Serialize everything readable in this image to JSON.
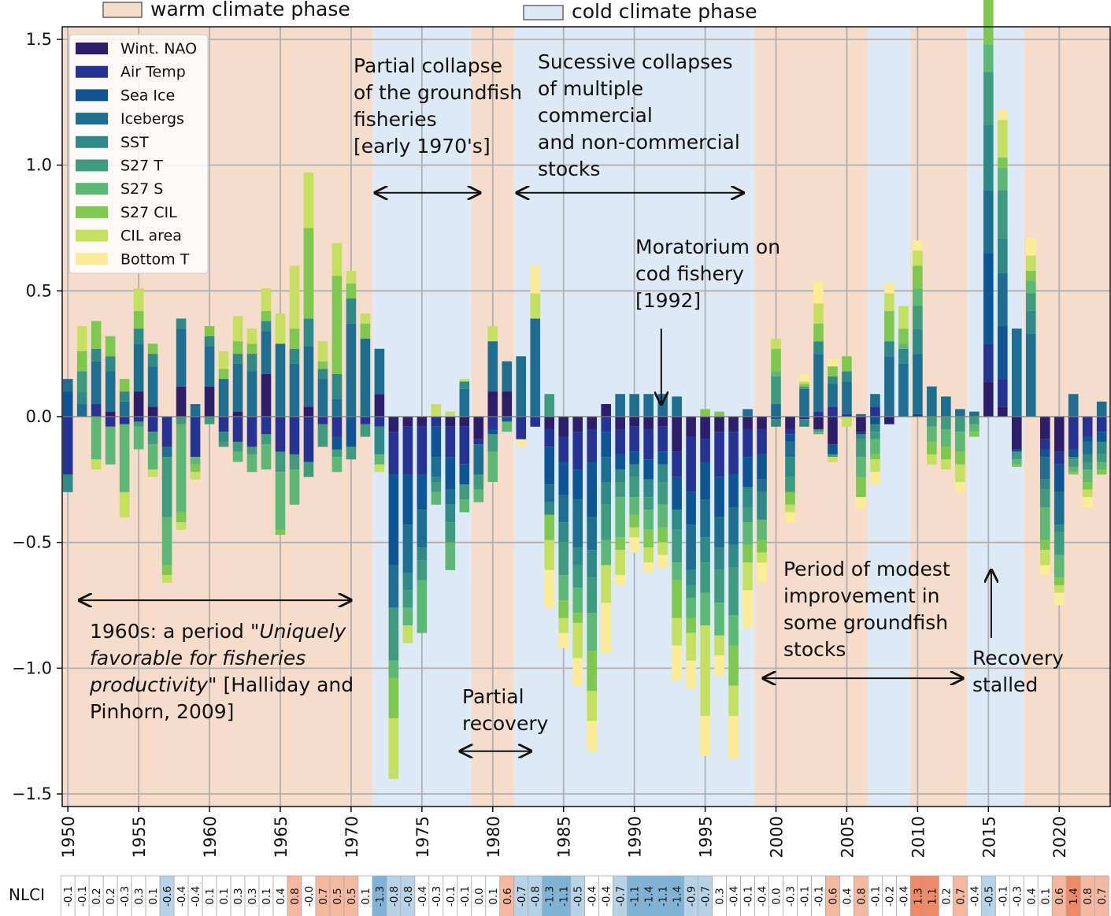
{
  "chart_data": {
    "type": "bar",
    "stacked": true,
    "x": [
      1950,
      1951,
      1952,
      1953,
      1954,
      1955,
      1956,
      1957,
      1958,
      1959,
      1960,
      1961,
      1962,
      1963,
      1964,
      1965,
      1966,
      1967,
      1968,
      1969,
      1970,
      1971,
      1972,
      1973,
      1974,
      1975,
      1976,
      1977,
      1978,
      1979,
      1980,
      1981,
      1982,
      1983,
      1984,
      1985,
      1986,
      1987,
      1988,
      1989,
      1990,
      1991,
      1992,
      1993,
      1994,
      1995,
      1996,
      1997,
      1998,
      1999,
      2000,
      2001,
      2002,
      2003,
      2004,
      2005,
      2006,
      2007,
      2008,
      2009,
      2010,
      2011,
      2012,
      2013,
      2014,
      2015,
      2016,
      2017,
      2018,
      2019,
      2020,
      2021,
      2022,
      2023
    ],
    "x_ticks": [
      "1950",
      "1955",
      "1960",
      "1965",
      "1970",
      "1975",
      "1980",
      "1985",
      "1990",
      "1995",
      "2000",
      "2005",
      "2010",
      "2015",
      "2020"
    ],
    "y_ticks": [
      "1.5",
      "1.0",
      "0.5",
      "0.0",
      "-0.5",
      "-1.0",
      "-1.5"
    ],
    "ylim": [
      -1.55,
      1.55
    ],
    "xlim": [
      1949.6,
      2023.6
    ],
    "grid": true,
    "legend_position": "top-left",
    "series_names": [
      "Wint. NAO",
      "Air Temp",
      "Sea Ice",
      "Icebergs",
      "SST",
      "S27 T",
      "S27 S",
      "S27 CIL",
      "CIL area",
      "Bottom T"
    ],
    "colors": [
      "#2d1e6b",
      "#253494",
      "#0e5596",
      "#1d6e91",
      "#2f8a87",
      "#3e9b7f",
      "#5cb874",
      "#7ec850",
      "#c4e05e",
      "#fbec95"
    ],
    "components": [
      [
        0.0,
        -0.23,
        0.1,
        0.05,
        -0.07,
        0.0,
        0.0,
        0.0,
        0.0,
        0.0
      ],
      [
        0.0,
        0.0,
        0.0,
        0.05,
        0.05,
        0.08,
        0.0,
        0.08,
        0.1,
        0.0
      ],
      [
        0.0,
        0.05,
        0.0,
        0.17,
        0.05,
        0.0,
        -0.17,
        0.11,
        -0.04,
        0.0
      ],
      [
        0.02,
        -0.04,
        0.0,
        0.16,
        0.06,
        0.0,
        -0.15,
        0.08,
        0.0,
        0.0
      ],
      [
        0.0,
        -0.03,
        0.0,
        0.06,
        0.04,
        0.0,
        -0.27,
        0.05,
        -0.1,
        0.0
      ],
      [
        0.1,
        -0.02,
        0.0,
        0.19,
        0.06,
        -0.02,
        -0.09,
        0.07,
        0.09,
        0.0
      ],
      [
        0.04,
        -0.06,
        0.0,
        0.16,
        0.05,
        -0.05,
        -0.1,
        0.04,
        -0.03,
        0.0
      ],
      [
        0.0,
        -0.12,
        0.0,
        -0.04,
        0.0,
        -0.24,
        -0.19,
        -0.04,
        -0.03,
        0.0
      ],
      [
        0.12,
        0.0,
        0.0,
        0.23,
        0.04,
        -0.03,
        -0.35,
        -0.04,
        -0.03,
        0.0
      ],
      [
        0.0,
        -0.16,
        0.0,
        0.05,
        0.0,
        0.0,
        -0.03,
        -0.03,
        -0.03,
        0.0
      ],
      [
        0.12,
        0.0,
        0.0,
        0.16,
        0.04,
        -0.03,
        0.0,
        0.04,
        0.0,
        0.0
      ],
      [
        0.0,
        -0.06,
        0.0,
        0.15,
        -0.04,
        -0.02,
        0.0,
        0.04,
        0.07,
        0.0
      ],
      [
        0.02,
        -0.1,
        0.0,
        0.19,
        0.04,
        -0.04,
        -0.04,
        0.05,
        0.1,
        0.0
      ],
      [
        0.0,
        -0.12,
        0.0,
        0.18,
        0.07,
        -0.03,
        -0.07,
        0.04,
        0.06,
        0.0
      ],
      [
        0.17,
        -0.07,
        0.0,
        0.17,
        0.04,
        -0.04,
        -0.1,
        0.04,
        0.09,
        0.0
      ],
      [
        0.0,
        -0.14,
        0.0,
        0.29,
        0.0,
        -0.08,
        -0.23,
        -0.02,
        0.12,
        0.0
      ],
      [
        0.0,
        -0.15,
        0.0,
        0.21,
        0.06,
        -0.06,
        -0.14,
        0.08,
        0.25,
        0.0
      ],
      [
        0.04,
        -0.18,
        0.0,
        0.24,
        0.11,
        -0.06,
        0.0,
        0.36,
        0.22,
        0.0
      ],
      [
        0.0,
        -0.03,
        0.0,
        0.15,
        0.04,
        -0.09,
        0.0,
        0.03,
        0.08,
        0.0
      ],
      [
        0.0,
        -0.08,
        -0.05,
        0.07,
        0.1,
        -0.03,
        -0.06,
        0.39,
        0.13,
        0.0
      ],
      [
        0.0,
        0.0,
        -0.12,
        0.37,
        0.1,
        -0.05,
        0.0,
        0.06,
        0.05,
        0.0
      ],
      [
        0.0,
        -0.03,
        0.0,
        0.31,
        0.0,
        -0.05,
        0.0,
        0.06,
        0.04,
        0.0
      ],
      [
        0.09,
        -0.04,
        0.0,
        0.18,
        -0.11,
        0.0,
        -0.04,
        0.0,
        -0.03,
        0.0
      ],
      [
        -0.06,
        -0.17,
        -0.36,
        -0.17,
        -0.0,
        -0.21,
        -0.07,
        -0.16,
        -0.24,
        0.0
      ],
      [
        -0.04,
        -0.19,
        -0.2,
        -0.19,
        -0.07,
        -0.07,
        -0.07,
        0.0,
        -0.07,
        0.0
      ],
      [
        -0.04,
        -0.19,
        -0.14,
        -0.15,
        -0.05,
        -0.08,
        -0.21,
        -0.0,
        0.0,
        0.0
      ],
      [
        0.0,
        -0.04,
        -0.12,
        -0.08,
        -0.02,
        -0.04,
        -0.05,
        0.0,
        0.05,
        0.0
      ],
      [
        -0.04,
        -0.12,
        -0.13,
        -0.06,
        -0.07,
        -0.08,
        -0.11,
        0.0,
        0.02,
        0.0
      ],
      [
        -0.04,
        -0.15,
        -0.08,
        0.11,
        0.03,
        -0.06,
        -0.05,
        0.0,
        0.01,
        0.0
      ],
      [
        -0.09,
        -0.02,
        0.0,
        -0.12,
        0.0,
        -0.06,
        -0.05,
        0.0,
        0.0,
        0.0
      ],
      [
        0.1,
        -0.05,
        -0.02,
        0.2,
        0.0,
        -0.07,
        -0.12,
        0.0,
        0.06,
        0.0
      ],
      [
        0.1,
        0.0,
        -0.02,
        0.12,
        0.0,
        0.0,
        -0.04,
        0.0,
        0.0,
        0.0
      ],
      [
        0.0,
        -0.09,
        0.0,
        0.24,
        0.0,
        0.0,
        0.0,
        0.0,
        0.0,
        -0.03
      ],
      [
        0.0,
        -0.04,
        0.0,
        0.39,
        0.0,
        0.0,
        0.0,
        0.0,
        0.1,
        0.11
      ],
      [
        -0.05,
        -0.07,
        -0.15,
        -0.07,
        -0.05,
        0.09,
        0.0,
        -0.1,
        -0.12,
        -0.15
      ],
      [
        -0.08,
        -0.1,
        -0.13,
        -0.11,
        -0.08,
        -0.13,
        -0.1,
        -0.07,
        -0.06,
        -0.06
      ],
      [
        -0.06,
        -0.15,
        -0.12,
        -0.19,
        -0.07,
        -0.09,
        -0.1,
        -0.04,
        -0.14,
        -0.11
      ],
      [
        -0.05,
        -0.13,
        -0.22,
        -0.13,
        -0.11,
        -0.14,
        -0.15,
        -0.16,
        -0.12,
        -0.12
      ],
      [
        0.05,
        -0.06,
        -0.1,
        -0.1,
        -0.09,
        -0.14,
        -0.1,
        0.0,
        -0.15,
        -0.2
      ],
      [
        -0.05,
        -0.1,
        -0.06,
        0.09,
        -0.05,
        -0.06,
        -0.16,
        -0.05,
        -0.1,
        -0.04
      ],
      [
        -0.04,
        -0.1,
        -0.05,
        0.09,
        -0.05,
        -0.08,
        -0.07,
        -0.05,
        -0.04,
        -0.06
      ],
      [
        -0.05,
        -0.12,
        -0.08,
        0.09,
        -0.07,
        -0.05,
        -0.08,
        -0.07,
        -0.06,
        -0.04
      ],
      [
        -0.04,
        -0.1,
        -0.05,
        0.09,
        -0.07,
        -0.09,
        -0.09,
        -0.06,
        -0.05,
        -0.05
      ],
      [
        -0.14,
        -0.1,
        -0.13,
        0.08,
        -0.08,
        -0.13,
        -0.07,
        -0.15,
        -0.11,
        -0.14
      ],
      [
        -0.08,
        -0.22,
        -0.13,
        -0.18,
        -0.06,
        -0.05,
        -0.08,
        -0.06,
        -0.11,
        -0.11
      ],
      [
        -0.09,
        -0.09,
        -0.15,
        -0.15,
        -0.1,
        -0.12,
        -0.13,
        0.03,
        -0.36,
        -0.16
      ],
      [
        -0.06,
        -0.18,
        -0.16,
        -0.12,
        -0.09,
        -0.13,
        -0.13,
        0.02,
        -0.08,
        -0.08
      ],
      [
        -0.06,
        -0.17,
        -0.13,
        -0.15,
        -0.09,
        -0.19,
        -0.12,
        -0.16,
        -0.12,
        -0.17
      ],
      [
        -0.05,
        -0.11,
        -0.12,
        0.03,
        -0.08,
        -0.06,
        -0.09,
        -0.07,
        -0.11,
        -0.15
      ],
      [
        -0.05,
        -0.1,
        -0.1,
        -0.05,
        -0.11,
        0.0,
        -0.08,
        -0.05,
        -0.04,
        -0.08
      ],
      [
        0.0,
        0.0,
        -0.01,
        0.05,
        -0.03,
        0.11,
        0.02,
        0.09,
        0.04,
        0.0
      ],
      [
        -0.05,
        -0.02,
        -0.03,
        -0.06,
        -0.08,
        -0.06,
        0.0,
        -0.05,
        -0.03,
        -0.04
      ],
      [
        0.0,
        -0.01,
        0.0,
        0.11,
        -0.03,
        0.01,
        0.0,
        0.01,
        0.01,
        0.03
      ],
      [
        -0.05,
        0.02,
        0.0,
        0.23,
        0.05,
        -0.01,
        -0.01,
        0.07,
        0.08,
        0.09
      ],
      [
        -0.11,
        0.04,
        -0.04,
        0.09,
        0.03,
        -0.01,
        0.0,
        0.04,
        -0.02,
        0.03
      ],
      [
        0.0,
        0.01,
        0.0,
        0.13,
        0.04,
        0.0,
        0.0,
        0.06,
        -0.04,
        0.0
      ],
      [
        -0.06,
        -0.01,
        0.0,
        0.01,
        -0.02,
        -0.07,
        -0.08,
        -0.08,
        0.0,
        -0.05
      ],
      [
        0.0,
        0.04,
        -0.03,
        0.05,
        -0.03,
        -0.03,
        -0.06,
        -0.02,
        -0.05,
        -0.05
      ],
      [
        -0.03,
        0.0,
        0.0,
        0.24,
        0.06,
        0.0,
        0.0,
        0.12,
        0.07,
        0.04
      ],
      [
        0.0,
        0.0,
        0.0,
        0.21,
        0.06,
        0.0,
        0.02,
        0.06,
        0.09,
        0.0
      ],
      [
        0.0,
        0.01,
        0.0,
        0.24,
        0.1,
        0.09,
        0.07,
        0.09,
        0.06,
        0.04
      ],
      [
        0.0,
        0.0,
        0.0,
        0.12,
        0.0,
        -0.04,
        -0.06,
        -0.05,
        -0.04,
        0.0
      ],
      [
        0.0,
        0.0,
        0.0,
        0.08,
        0.0,
        -0.05,
        -0.07,
        -0.05,
        -0.04,
        0.0
      ],
      [
        0.0,
        0.0,
        0.0,
        0.03,
        0.0,
        -0.06,
        -0.08,
        -0.05,
        -0.07,
        -0.04
      ],
      [
        0.0,
        0.0,
        0.0,
        0.02,
        0.0,
        -0.03,
        -0.03,
        -0.02,
        0.0,
        0.0
      ],
      [
        0.14,
        0.15,
        0.36,
        0.25,
        0.26,
        0.21,
        0.11,
        0.18,
        0.09,
        0.12
      ],
      [
        0.04,
        0.11,
        0.21,
        0.21,
        0.14,
        0.19,
        0.09,
        0.04,
        0.15,
        0.04
      ],
      [
        -0.13,
        0.0,
        -0.01,
        0.35,
        0.0,
        -0.03,
        -0.02,
        -0.01,
        0.0,
        0.0
      ],
      [
        0.0,
        0.0,
        0.0,
        0.33,
        0.09,
        0.07,
        0.05,
        0.04,
        0.06,
        0.07
      ],
      [
        -0.09,
        -0.04,
        -0.03,
        -0.09,
        -0.04,
        -0.07,
        -0.13,
        -0.04,
        -0.06,
        -0.04
      ],
      [
        -0.14,
        -0.05,
        -0.11,
        -0.13,
        -0.03,
        -0.09,
        -0.09,
        -0.03,
        -0.03,
        -0.05
      ],
      [
        0.0,
        -0.13,
        -0.03,
        0.09,
        -0.01,
        -0.03,
        -0.02,
        -0.01,
        0.0,
        0.0
      ],
      [
        0.0,
        -0.08,
        -0.02,
        -0.05,
        -0.03,
        -0.03,
        -0.05,
        -0.03,
        -0.03,
        -0.04
      ],
      [
        0.0,
        -0.06,
        -0.04,
        0.06,
        -0.05,
        -0.03,
        -0.03,
        -0.02,
        0.0,
        0.0
      ]
    ],
    "phases": [
      {
        "type": "warm",
        "start": 1949.6,
        "end": 1971.5
      },
      {
        "type": "cold",
        "start": 1971.5,
        "end": 1978.5
      },
      {
        "type": "warm",
        "start": 1978.5,
        "end": 1981.5
      },
      {
        "type": "cold",
        "start": 1981.5,
        "end": 1998.5
      },
      {
        "type": "warm",
        "start": 1998.5,
        "end": 2006.5
      },
      {
        "type": "cold",
        "start": 2006.5,
        "end": 2009.5
      },
      {
        "type": "warm",
        "start": 2009.5,
        "end": 2013.5
      },
      {
        "type": "cold",
        "start": 2013.5,
        "end": 2017.5
      },
      {
        "type": "warm",
        "start": 2017.5,
        "end": 2023.6
      }
    ],
    "phase_colors": {
      "warm": "#f5dccb",
      "cold": "#dde9f4"
    },
    "phase_legend": {
      "warm": "warm climate phase",
      "cold": "cold climate phase"
    },
    "nlci_label": "NLCI",
    "nlci": [
      -0.1,
      -0.1,
      0.2,
      0.2,
      -0.3,
      0.3,
      0.1,
      -0.6,
      -0.4,
      -0.4,
      0.1,
      0.1,
      0.3,
      0.3,
      0.1,
      0.4,
      0.8,
      -0.0,
      0.7,
      0.5,
      0.5,
      0.1,
      -1.3,
      -0.8,
      -0.8,
      -0.4,
      -0.3,
      -0.1,
      -0.1,
      0.0,
      0.1,
      0.6,
      -0.7,
      -0.8,
      -1.3,
      -1.1,
      -0.5,
      -0.4,
      -0.4,
      -0.7,
      -1.1,
      -1.4,
      -1.1,
      -1.4,
      -0.9,
      -0.7,
      0.3,
      -0.4,
      -0.1,
      -0.4,
      0.0,
      -0.3,
      -0.1,
      -0.1,
      0.6,
      0.4,
      0.8,
      -0.1,
      -0.2,
      -0.4,
      1.3,
      1.1,
      0.2,
      0.7,
      -0.4,
      -0.5,
      -0.1,
      -0.3,
      0.4,
      0.1,
      0.6,
      1.4,
      0.8,
      0.7
    ],
    "nlci_text": [
      "-0.1",
      "-0.1",
      "0.2",
      "0.2",
      "-0.3",
      "0.3",
      "0.1",
      "-0.6",
      "-0.4",
      "-0.4",
      "0.1",
      "0.1",
      "0.3",
      "0.3",
      "0.1",
      "0.4",
      "0.8",
      "-0.0",
      "0.7",
      "0.5",
      "0.5",
      "0.1",
      "-1.3",
      "-0.8",
      "-0.8",
      "-0.4",
      "-0.3",
      "-0.1",
      "-0.1",
      "0.0",
      "0.1",
      "0.6",
      "-0.7",
      "-0.8",
      "-1.3",
      "-1.1",
      "-0.5",
      "-0.4",
      "-0.4",
      "-0.7",
      "-1.1",
      "-1.4",
      "-1.1",
      "-1.4",
      "-0.9",
      "-0.7",
      "0.3",
      "-0.4",
      "-0.1",
      "-0.4",
      "0.0",
      "-0.3",
      "-0.1",
      "-0.1",
      "0.6",
      "0.4",
      "0.8",
      "-0.1",
      "-0.2",
      "-0.4",
      "1.3",
      "1.1",
      "0.2",
      "0.7",
      "-0.4",
      "-0.5",
      "-0.1",
      "-0.3",
      "0.4",
      "0.1",
      "0.6",
      "1.4",
      "0.8",
      "0.7"
    ],
    "annotations": [
      {
        "lines": [
          "Partial collapse",
          "of the groundfish",
          "fisheries",
          "[early 1970's]"
        ],
        "arrow": {
          "x1": 1971.7,
          "x2": 1979.1,
          "y1": 0.89,
          "y2": 0.89,
          "both": true
        }
      },
      {
        "lines": [
          "Sucessive collapses",
          "of multiple",
          "commercial",
          "and non-commercial",
          "stocks"
        ],
        "arrow": {
          "x1": 1981.7,
          "x2": 1997.7,
          "y1": 0.89,
          "y2": 0.89,
          "both": true
        }
      },
      {
        "lines": [
          "Moratorium on",
          "cod fishery",
          "[1992]"
        ],
        "arrow": {
          "x1": 1991.9,
          "x2": 1991.9,
          "y1": 0.35,
          "y2": 0.05,
          "both": false
        }
      },
      {
        "lines": [
          "1960s: a period \"",
          "Uniquely",
          "favorable for fisheries",
          "productivity",
          "\" [Halliday and",
          "Pinhorn, 2009]"
        ],
        "arrow": {
          "x1": 1950.8,
          "x2": 1970.0,
          "y1": -0.73,
          "y2": -0.73,
          "both": true
        }
      },
      {
        "lines": [
          "Partial",
          "recovery"
        ],
        "arrow": {
          "x1": 1977.7,
          "x2": 1982.7,
          "y1": -1.33,
          "y2": -1.33,
          "both": true
        }
      },
      {
        "lines": [
          "Period of modest",
          "improvement in",
          "some groundfish",
          "stocks"
        ],
        "arrow": {
          "x1": 1999.1,
          "x2": 2013.2,
          "y1": -1.04,
          "y2": -1.04,
          "both": true
        }
      },
      {
        "lines": [
          "Recovery",
          "stalled"
        ],
        "arrow": {
          "x1": 2015.2,
          "x2": 2015.2,
          "y1": -0.88,
          "y2": -0.61,
          "both": false
        }
      }
    ]
  }
}
